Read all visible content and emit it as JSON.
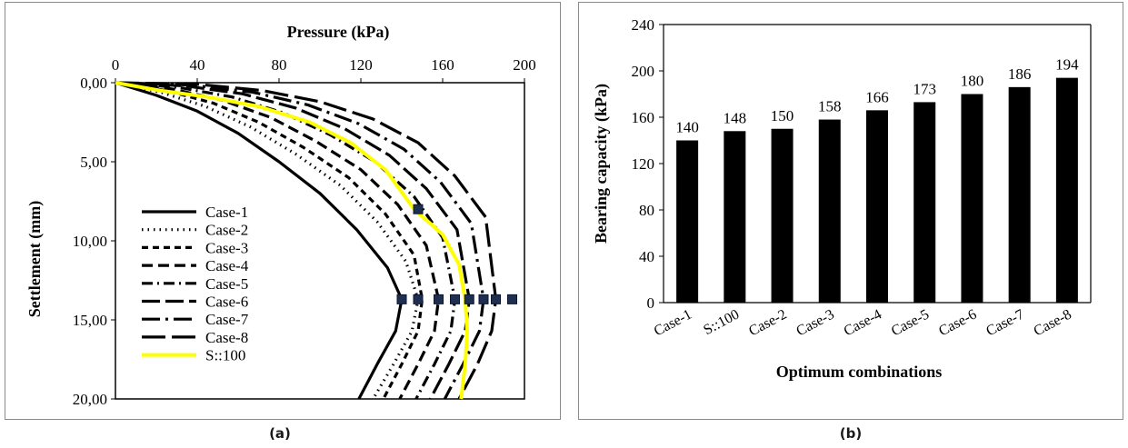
{
  "captions": {
    "a": "(a)",
    "b": "(b)"
  },
  "chart_data": [
    {
      "type": "line",
      "title": "",
      "xlabel": "Pressure (kPa)",
      "ylabel": "Settlement (mm)",
      "xlim": [
        0,
        200
      ],
      "ylim": [
        0,
        20
      ],
      "x_ticks": [
        "0",
        "40",
        "80",
        "120",
        "160",
        "200"
      ],
      "y_ticks": [
        "0,00",
        "5,00",
        "10,00",
        "15,00",
        "20,00"
      ],
      "y_inverted": true,
      "x_axis_position": "top",
      "legend_position": "bottom-left",
      "series": [
        {
          "name": "Case-1",
          "style": "solid",
          "color": "#000000",
          "points": [
            [
              0,
              0
            ],
            [
              20,
              0.8
            ],
            [
              40,
              1.8
            ],
            [
              60,
              3.2
            ],
            [
              80,
              5
            ],
            [
              100,
              7
            ],
            [
              118,
              9.3
            ],
            [
              133,
              11.7
            ],
            [
              140,
              13.7
            ],
            [
              137,
              15.7
            ],
            [
              128,
              17.8
            ],
            [
              119,
              20
            ]
          ]
        },
        {
          "name": "Case-2",
          "style": "dotted",
          "color": "#000000",
          "points": [
            [
              0,
              0
            ],
            [
              22,
              0.6
            ],
            [
              44,
              1.5
            ],
            [
              66,
              2.8
            ],
            [
              88,
              4.5
            ],
            [
              110,
              6.5
            ],
            [
              128,
              8.8
            ],
            [
              142,
              11.3
            ],
            [
              148,
              13.7
            ],
            [
              145,
              15.7
            ],
            [
              136,
              17.8
            ],
            [
              126,
              20
            ]
          ]
        },
        {
          "name": "Case-3",
          "style": "dash-short",
          "color": "#000000",
          "points": [
            [
              0,
              0
            ],
            [
              25,
              0.5
            ],
            [
              48,
              1.3
            ],
            [
              70,
              2.5
            ],
            [
              92,
              4.1
            ],
            [
              114,
              6
            ],
            [
              132,
              8.3
            ],
            [
              146,
              10.9
            ],
            [
              150,
              13.7
            ],
            [
              148,
              15.7
            ],
            [
              140,
              17.8
            ],
            [
              131,
              20
            ]
          ]
        },
        {
          "name": "Case-4",
          "style": "dash",
          "color": "#000000",
          "points": [
            [
              0,
              0
            ],
            [
              28,
              0.4
            ],
            [
              52,
              1.1
            ],
            [
              76,
              2.2
            ],
            [
              98,
              3.7
            ],
            [
              120,
              5.5
            ],
            [
              138,
              7.7
            ],
            [
              152,
              10.3
            ],
            [
              158,
              13.7
            ],
            [
              156,
              15.7
            ],
            [
              148,
              17.8
            ],
            [
              139,
              20
            ]
          ]
        },
        {
          "name": "Case-5",
          "style": "dash-dot",
          "color": "#000000",
          "points": [
            [
              0,
              0
            ],
            [
              31,
              0.3
            ],
            [
              57,
              0.9
            ],
            [
              82,
              1.9
            ],
            [
              105,
              3.3
            ],
            [
              127,
              5
            ],
            [
              146,
              7.2
            ],
            [
              160,
              9.8
            ],
            [
              166,
              13.7
            ],
            [
              164,
              15.7
            ],
            [
              156,
              17.8
            ],
            [
              147,
              20
            ]
          ]
        },
        {
          "name": "Case-6",
          "style": "long-dash",
          "color": "#000000",
          "points": [
            [
              0,
              0
            ],
            [
              34,
              0.2
            ],
            [
              62,
              0.7
            ],
            [
              88,
              1.6
            ],
            [
              112,
              2.9
            ],
            [
              134,
              4.6
            ],
            [
              152,
              6.7
            ],
            [
              167,
              9.3
            ],
            [
              173,
              13.7
            ],
            [
              171,
              15.7
            ],
            [
              163,
              17.8
            ],
            [
              154,
              20
            ]
          ]
        },
        {
          "name": "Case-7",
          "style": "long-dash-dot",
          "color": "#000000",
          "points": [
            [
              0,
              0
            ],
            [
              37,
              0.15
            ],
            [
              67,
              0.6
            ],
            [
              94,
              1.4
            ],
            [
              119,
              2.6
            ],
            [
              141,
              4.2
            ],
            [
              159,
              6.3
            ],
            [
              174,
              8.9
            ],
            [
              180,
              13.7
            ],
            [
              178,
              15.7
            ],
            [
              170,
              17.8
            ],
            [
              161,
              20
            ]
          ]
        },
        {
          "name": "Case-8",
          "style": "long-dash-2",
          "color": "#000000",
          "points": [
            [
              0,
              0
            ],
            [
              40,
              0.1
            ],
            [
              72,
              0.5
            ],
            [
              100,
              1.2
            ],
            [
              126,
              2.3
            ],
            [
              148,
              3.8
            ],
            [
              166,
              5.9
            ],
            [
              181,
              8.5
            ],
            [
              186,
              13.7
            ],
            [
              184,
              15.7
            ],
            [
              177,
              17.8
            ],
            [
              168,
              20
            ]
          ]
        },
        {
          "name": "S::100",
          "style": "solid",
          "color": "#ffff00",
          "points": [
            [
              0,
              0
            ],
            [
              22,
              0.5
            ],
            [
              45,
              0.9
            ],
            [
              70,
              1.5
            ],
            [
              95,
              2.5
            ],
            [
              115,
              3.8
            ],
            [
              132,
              5.5
            ],
            [
              146,
              8
            ],
            [
              160,
              9.6
            ],
            [
              168,
              11.5
            ],
            [
              171,
              13.7
            ],
            [
              172,
              15.7
            ],
            [
              171,
              17.8
            ],
            [
              169,
              20
            ]
          ]
        }
      ],
      "markers": [
        {
          "x": 148,
          "y": 8.0
        },
        {
          "x": 140,
          "y": 13.7
        },
        {
          "x": 148,
          "y": 13.7
        },
        {
          "x": 158,
          "y": 13.7
        },
        {
          "x": 166,
          "y": 13.7
        },
        {
          "x": 173,
          "y": 13.7
        },
        {
          "x": 180,
          "y": 13.7
        },
        {
          "x": 186,
          "y": 13.7
        },
        {
          "x": 194,
          "y": 13.7
        }
      ]
    },
    {
      "type": "bar",
      "title": "",
      "xlabel": "Optimum  combinations",
      "ylabel": "Bearing capacity (kPa)",
      "ylim": [
        0,
        240
      ],
      "y_ticks": [
        "0",
        "40",
        "80",
        "120",
        "160",
        "200",
        "240"
      ],
      "categories": [
        "Case-1",
        "S::100",
        "Case-2",
        "Case-3",
        "Case-4",
        "Case-5",
        "Case-6",
        "Case-7",
        "Case-8"
      ],
      "values": [
        140,
        148,
        150,
        158,
        166,
        173,
        180,
        186,
        194
      ],
      "data_labels": [
        "140",
        "148",
        "150",
        "158",
        "166",
        "173",
        "180",
        "186",
        "194"
      ],
      "bar_color": "#000000",
      "grid": false
    }
  ]
}
